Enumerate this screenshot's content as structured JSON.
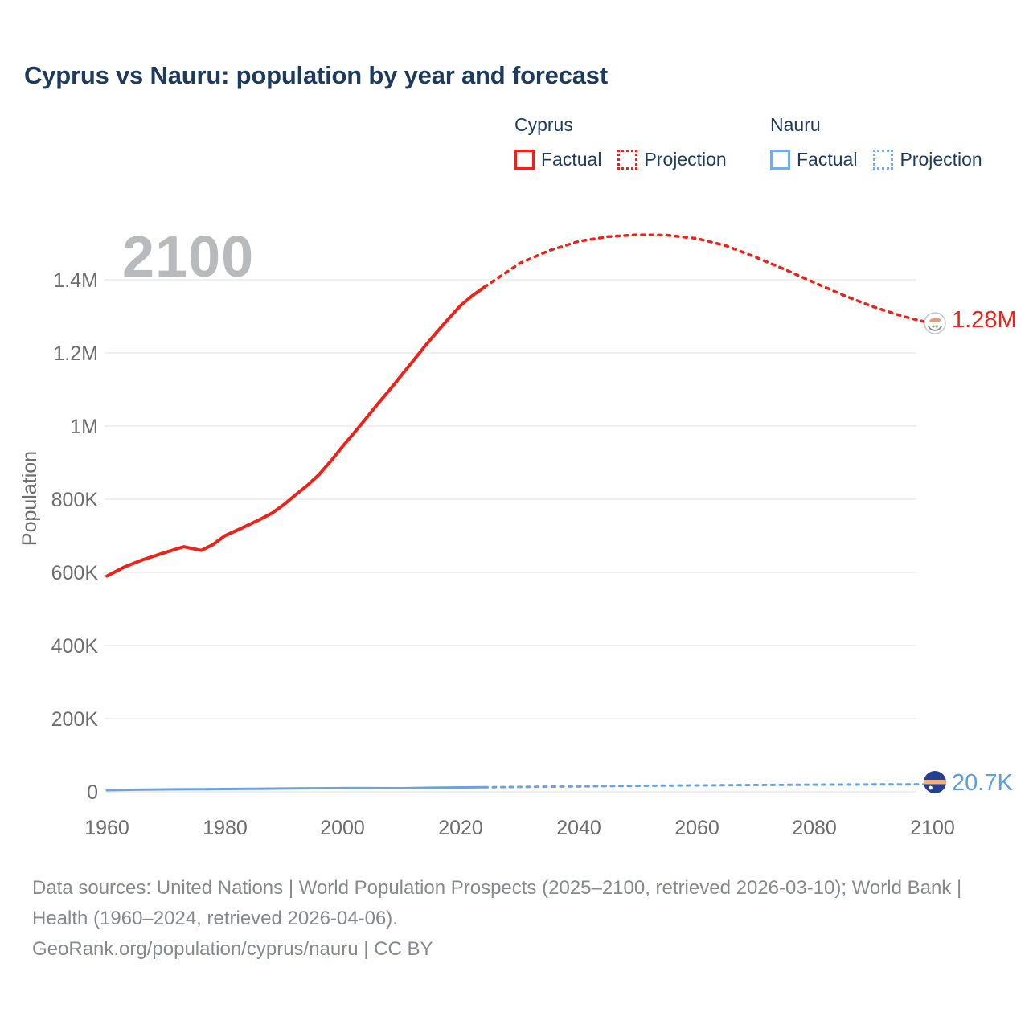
{
  "title": "Cyprus vs Nauru: population by year and forecast",
  "watermark": "2100",
  "legend": {
    "cyprus": {
      "label": "Cyprus",
      "factual": "Factual",
      "projection": "Projection"
    },
    "nauru": {
      "label": "Nauru",
      "factual": "Factual",
      "projection": "Projection"
    }
  },
  "y_axis": {
    "label": "Population",
    "ticks": [
      "1.4M",
      "1.2M",
      "1M",
      "800K",
      "600K",
      "400K",
      "200K",
      "0"
    ]
  },
  "x_axis": {
    "ticks": [
      "1960",
      "1980",
      "2000",
      "2020",
      "2040",
      "2060",
      "2080",
      "2100"
    ]
  },
  "end_labels": {
    "cyprus": "1.28M",
    "nauru": "20.7K"
  },
  "icons": {
    "cyprus_flag": "cyprus-flag-icon",
    "nauru_flag": "nauru-flag-icon"
  },
  "colors": {
    "cyprus_line": "#ef2118",
    "nauru_line": "#6aa4e0",
    "nauru_label": "#5c9ee2",
    "heading_text": "#1d3b5e",
    "tick_text": "#6d6d6d",
    "gridline": "#ececec",
    "watermark": "#b8babd",
    "footer_text": "#85898e"
  },
  "footer": {
    "sources": "Data sources: United Nations | World Population Prospects (2025–2100, retrieved 2026-03-10); World Bank | Health (1960–2024, retrieved 2026-04-06).",
    "attribution": "GeoRank.org/population/cyprus/nauru | CC BY"
  },
  "chart_data": {
    "type": "line",
    "title": "Cyprus vs Nauru: population by year and forecast",
    "xlabel": "",
    "ylabel": "Population",
    "xlim": [
      1960,
      2100
    ],
    "ylim": [
      0,
      1500000
    ],
    "grid": true,
    "legend_position": "top-right",
    "series": [
      {
        "name": "Cyprus Factual",
        "style": "solid",
        "color": "#ef2118",
        "x": [
          1960,
          1963,
          1966,
          1969,
          1973,
          1976,
          1978,
          1980,
          1983,
          1986,
          1988,
          1990,
          1992,
          1994,
          1996,
          1998,
          2000,
          2002,
          2004,
          2006,
          2008,
          2010,
          2012,
          2014,
          2016,
          2018,
          2020,
          2022,
          2024
        ],
        "y": [
          590000,
          615000,
          634000,
          650000,
          670000,
          660000,
          676000,
          700000,
          722000,
          745000,
          762000,
          785000,
          812000,
          838000,
          868000,
          905000,
          945000,
          983000,
          1022000,
          1062000,
          1100000,
          1140000,
          1180000,
          1220000,
          1258000,
          1295000,
          1330000,
          1357000,
          1380000
        ]
      },
      {
        "name": "Cyprus Projection",
        "style": "dotted",
        "color": "#ef2118",
        "x": [
          2024,
          2030,
          2035,
          2040,
          2045,
          2050,
          2055,
          2060,
          2065,
          2070,
          2075,
          2080,
          2085,
          2090,
          2095,
          2100
        ],
        "y": [
          1380000,
          1445000,
          1480000,
          1505000,
          1518000,
          1523000,
          1522000,
          1513000,
          1493000,
          1462000,
          1428000,
          1392000,
          1357000,
          1326000,
          1300000,
          1280000
        ]
      },
      {
        "name": "Nauru Factual",
        "style": "solid",
        "color": "#6aa4e0",
        "x": [
          1960,
          1965,
          1970,
          1975,
          1980,
          1985,
          1990,
          1995,
          2000,
          2005,
          2010,
          2015,
          2020,
          2024
        ],
        "y": [
          4400,
          5700,
          6600,
          7100,
          7600,
          8300,
          9100,
          9600,
          10100,
          10100,
          10000,
          11200,
          12000,
          12500
        ]
      },
      {
        "name": "Nauru Projection",
        "style": "dotted",
        "color": "#6aa4e0",
        "x": [
          2024,
          2030,
          2040,
          2050,
          2060,
          2070,
          2080,
          2090,
          2100
        ],
        "y": [
          12500,
          13500,
          15000,
          16400,
          17600,
          18700,
          19500,
          20200,
          20700
        ]
      }
    ],
    "end_value_labels": [
      {
        "series": "Cyprus",
        "year": 2100,
        "label": "1.28M"
      },
      {
        "series": "Nauru",
        "year": 2100,
        "label": "20.7K"
      }
    ]
  }
}
